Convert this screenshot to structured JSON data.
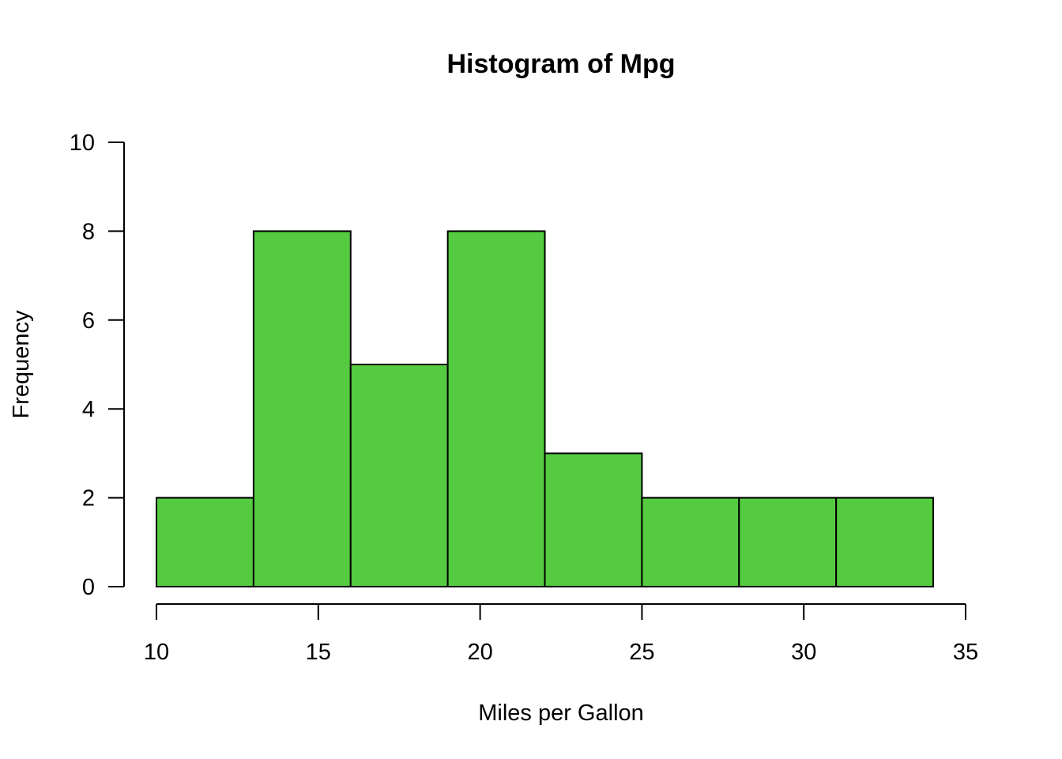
{
  "chart_data": {
    "type": "histogram",
    "title": "Histogram of Mpg",
    "xlabel": "Miles per Gallon",
    "ylabel": "Frequency",
    "bins": [
      {
        "start": 10,
        "end": 13,
        "count": 2
      },
      {
        "start": 13,
        "end": 16,
        "count": 8
      },
      {
        "start": 16,
        "end": 19,
        "count": 5
      },
      {
        "start": 19,
        "end": 22,
        "count": 8
      },
      {
        "start": 22,
        "end": 25,
        "count": 3
      },
      {
        "start": 25,
        "end": 28,
        "count": 2
      },
      {
        "start": 28,
        "end": 31,
        "count": 2
      },
      {
        "start": 31,
        "end": 34,
        "count": 2
      }
    ],
    "xlim": [
      10,
      35
    ],
    "ylim": [
      0,
      10
    ],
    "xticks": [
      "10",
      "15",
      "20",
      "25",
      "30",
      "35"
    ],
    "yticks": [
      "0",
      "2",
      "4",
      "6",
      "8",
      "10"
    ],
    "bar_color": "#54CB40",
    "grid": false,
    "legend": "none"
  }
}
